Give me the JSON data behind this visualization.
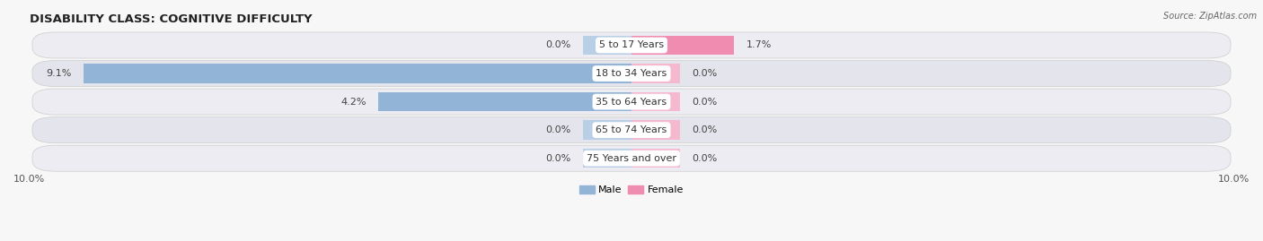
{
  "title": "DISABILITY CLASS: COGNITIVE DIFFICULTY",
  "source": "Source: ZipAtlas.com",
  "categories": [
    "5 to 17 Years",
    "18 to 34 Years",
    "35 to 64 Years",
    "65 to 74 Years",
    "75 Years and over"
  ],
  "male_values": [
    0.0,
    9.1,
    4.2,
    0.0,
    0.0
  ],
  "female_values": [
    1.7,
    0.0,
    0.0,
    0.0,
    0.0
  ],
  "male_color": "#92b4d7",
  "female_color": "#f08cb0",
  "male_placeholder_color": "#b8cfe6",
  "female_placeholder_color": "#f4b8cf",
  "row_bg_odd": "#ececf2",
  "row_bg_even": "#e4e4ec",
  "max_value": 10.0,
  "x_min": -10.0,
  "x_max": 10.0,
  "placeholder_size": 0.8,
  "title_fontsize": 9.5,
  "label_fontsize": 8,
  "value_fontsize": 8,
  "tick_fontsize": 8,
  "figsize": [
    14.06,
    2.69
  ],
  "dpi": 100
}
